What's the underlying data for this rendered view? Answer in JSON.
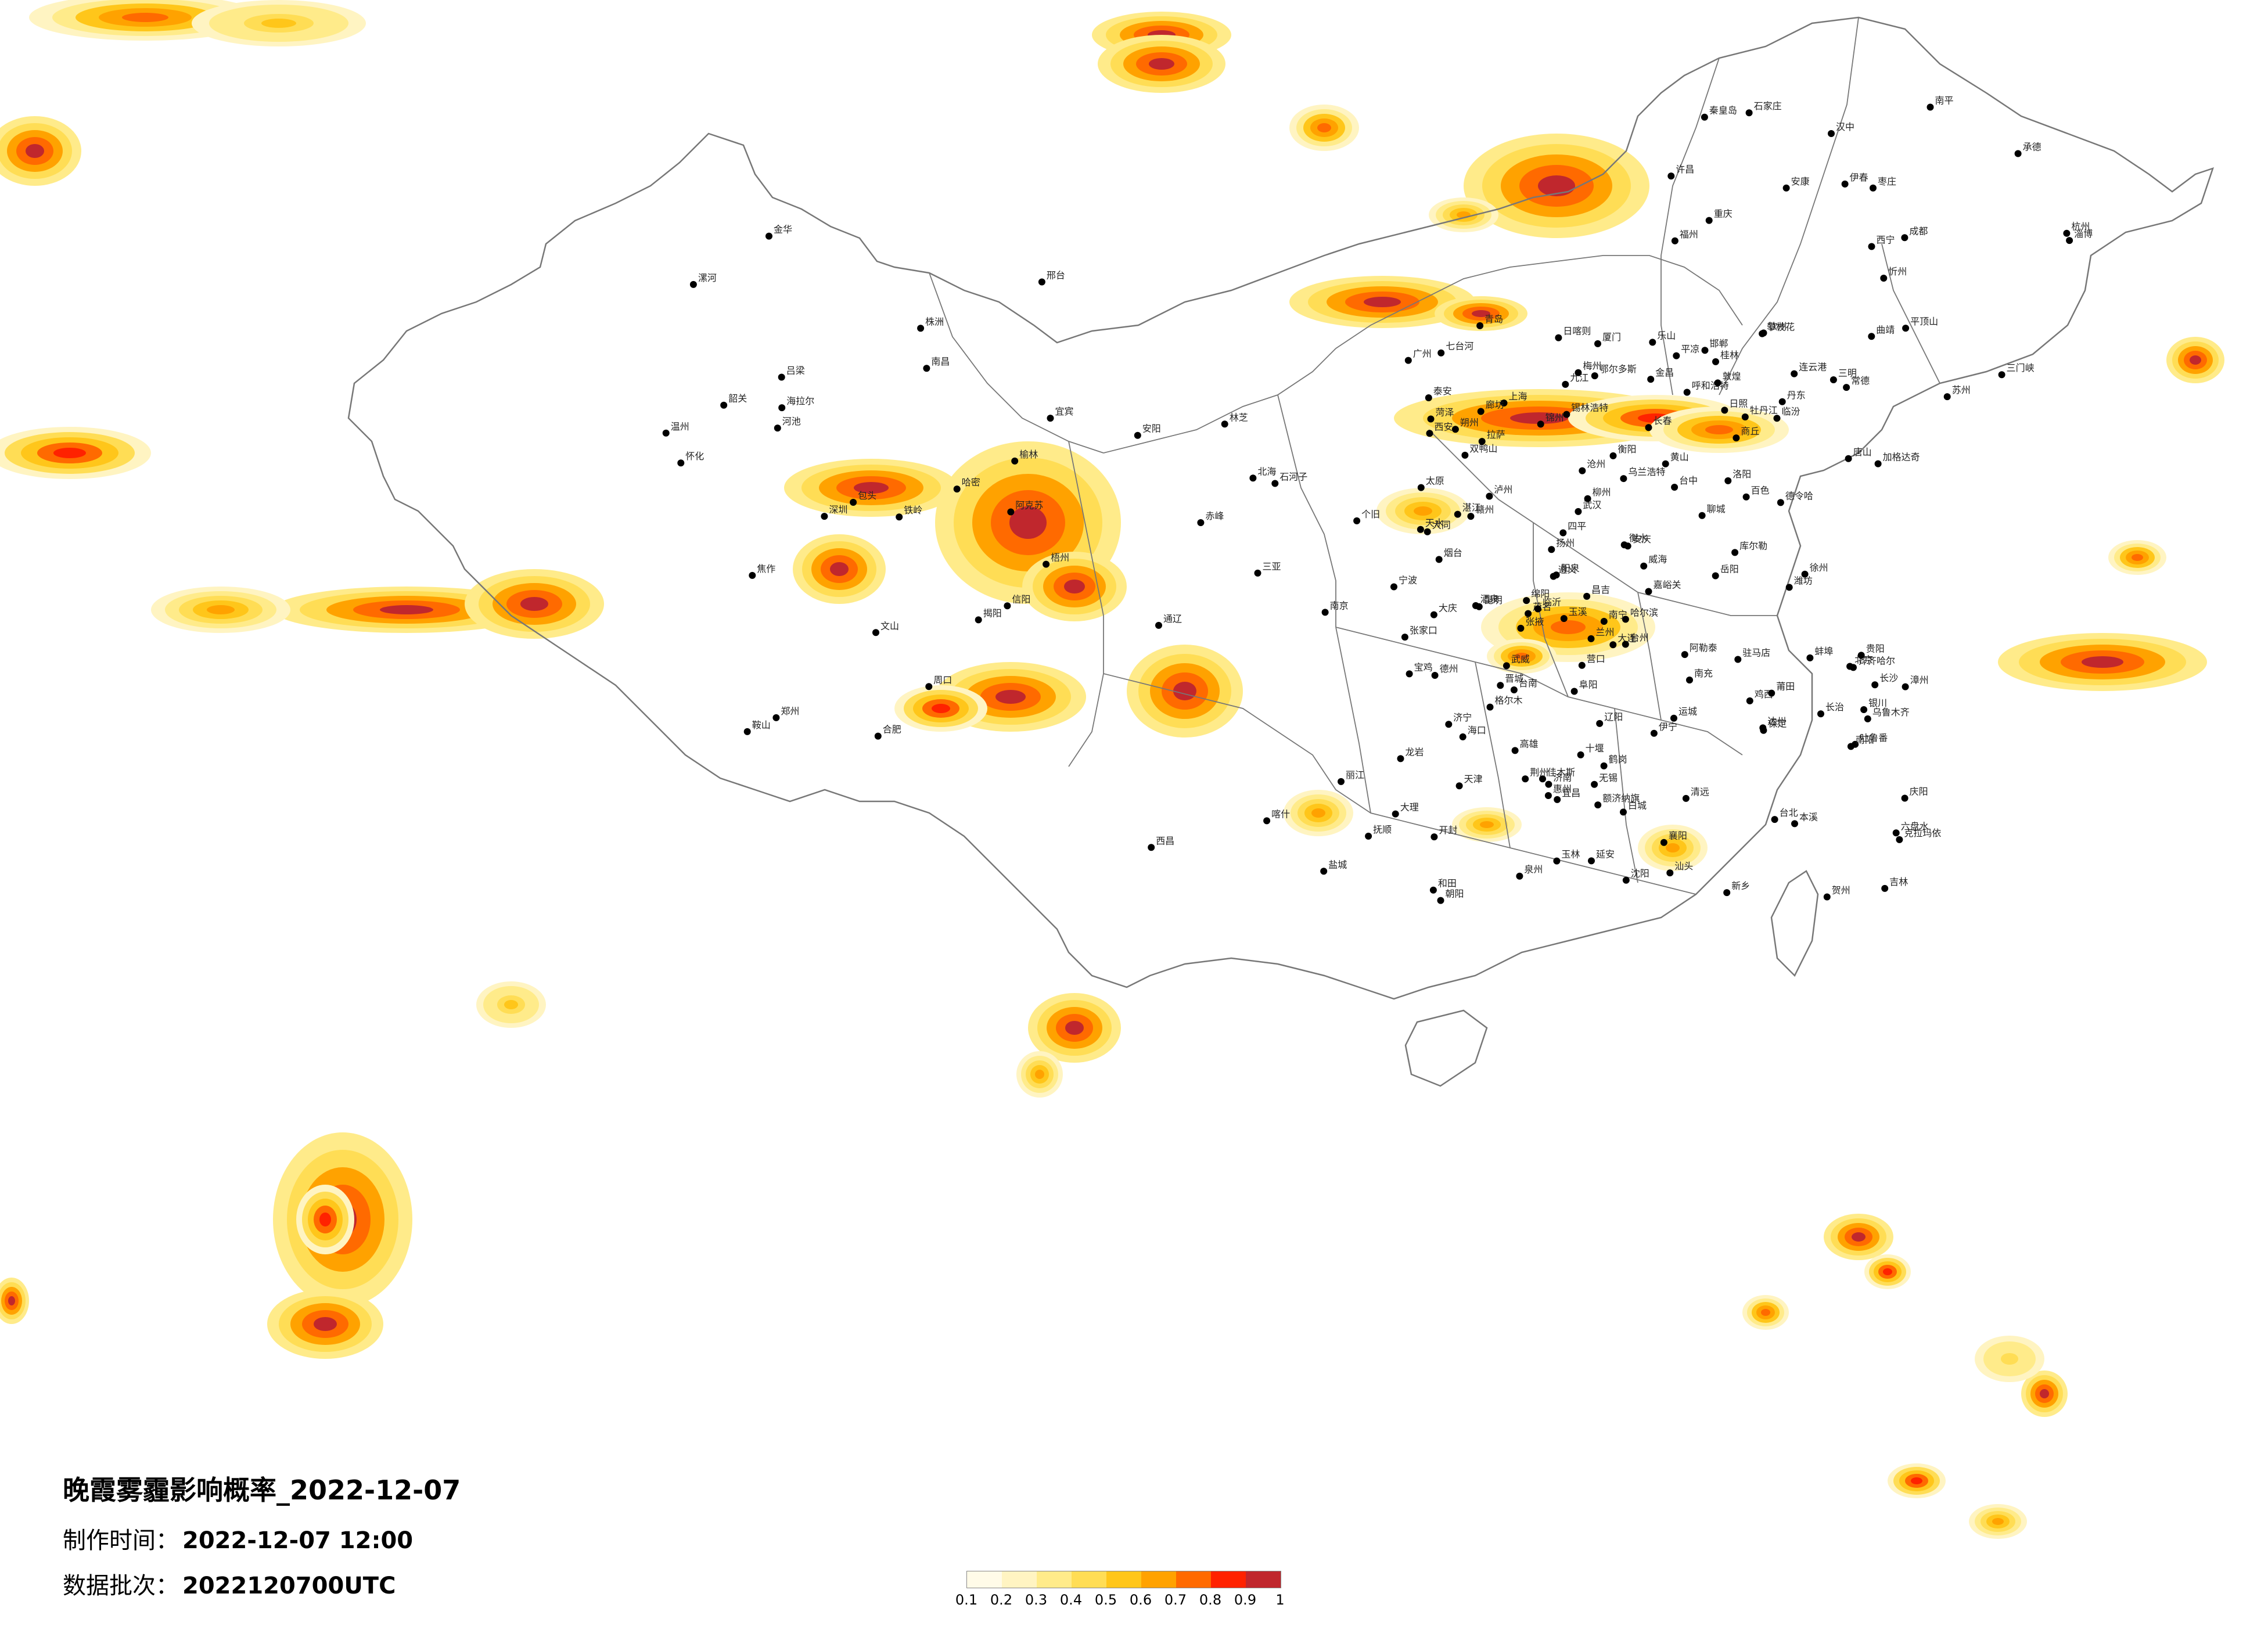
{
  "title": "晚霞雾霾影响概率_2022-12-07",
  "meta": [
    {
      "label": "制作时间：",
      "value": "2022-12-07 12:00"
    },
    {
      "label": "数据批次：",
      "value": "2022120700UTC"
    }
  ],
  "legend": {
    "colors": [
      "#fffbe8",
      "#fff4c2",
      "#ffeb8a",
      "#ffdd55",
      "#ffc61a",
      "#ffa200",
      "#ff6a00",
      "#ff2200",
      "#c0272d"
    ],
    "ticks": [
      "0.1",
      "0.2",
      "0.3",
      "0.4",
      "0.5",
      "0.6",
      "0.7",
      "0.8",
      "0.9",
      "1"
    ]
  },
  "cities": [
    "呼和浩特",
    "哈尔滨",
    "齐齐哈尔",
    "佳木斯",
    "大庆",
    "牡丹江",
    "长春",
    "吉林",
    "沈阳",
    "大连",
    "锦州",
    "赤峰",
    "锡林浩特",
    "海拉尔",
    "加格达奇",
    "伊春",
    "鹤岗",
    "双鸭山",
    "七台河",
    "鸡西",
    "通辽",
    "白城",
    "乌兰浩特",
    "丹东",
    "本溪",
    "抚顺",
    "铁岭",
    "四平",
    "辽阳",
    "鞍山",
    "营口",
    "朝阳",
    "北京",
    "天津",
    "石家庄",
    "保定",
    "唐山",
    "秦皇岛",
    "张家口",
    "承德",
    "太原",
    "大同",
    "济南",
    "青岛",
    "烟台",
    "威海",
    "潍坊",
    "郑州",
    "洛阳",
    "开封",
    "西安",
    "宝鸡",
    "兰州",
    "西宁",
    "银川",
    "乌鲁木齐",
    "克拉玛依",
    "伊宁",
    "阿克苏",
    "喀什",
    "和田",
    "库尔勒",
    "哈密",
    "吐鲁番",
    "昌吉",
    "石河子",
    "拉萨",
    "日喀则",
    "林芝",
    "格尔木",
    "德令哈",
    "成都",
    "重庆",
    "贵阳",
    "昆明",
    "南宁",
    "广州",
    "深圳",
    "福州",
    "厦门",
    "台北",
    "台中",
    "高雄",
    "台南",
    "杭州",
    "南京",
    "上海",
    "合肥",
    "武汉",
    "长沙",
    "南昌",
    "海口",
    "三亚",
    "阿勒泰",
    "额济纳旗",
    "包头",
    "鄂尔多斯",
    "延安",
    "榆林",
    "汉中",
    "安康",
    "天水",
    "庆阳",
    "平凉",
    "酒泉",
    "张掖",
    "武威",
    "金昌",
    "嘉峪关",
    "敦煌",
    "遵义",
    "六盘水",
    "大理",
    "丽江",
    "曲靖",
    "桂林",
    "柳州",
    "北海",
    "钦州",
    "湛江",
    "茂名",
    "汕头",
    "梅州",
    "赣州",
    "九江",
    "宜昌",
    "襄阳",
    "十堰",
    "荆州",
    "岳阳",
    "常德",
    "衡阳",
    "株洲",
    "怀化",
    "温州",
    "宁波",
    "金华",
    "台州",
    "徐州",
    "连云港",
    "盐城",
    "扬州",
    "苏州",
    "无锡",
    "蚌埠",
    "阜阳",
    "安庆",
    "黄山",
    "漳州",
    "泉州",
    "莆田",
    "三明",
    "龙岩",
    "南平",
    "泸州",
    "宜宾",
    "南充",
    "绵阳",
    "乐山",
    "达州",
    "西昌",
    "攀枝花",
    "玉溪",
    "文山",
    "个旧",
    "百色",
    "河池",
    "玉林",
    "梧州",
    "贺州",
    "韶关",
    "清远",
    "惠州",
    "揭阳",
    "邯郸",
    "邢台",
    "衡水",
    "沧州",
    "廊坊",
    "临沂",
    "济宁",
    "菏泽",
    "聊城",
    "德州",
    "淄博",
    "日照",
    "枣庄",
    "泰安",
    "商丘",
    "周口",
    "驻马店",
    "信阳",
    "南阳",
    "平顶山",
    "新乡",
    "安阳",
    "焦作",
    "许昌",
    "漯河",
    "三门峡",
    "运城",
    "临汾",
    "长治",
    "晋城",
    "阳泉",
    "忻州",
    "吕梁",
    "朔州"
  ]
}
